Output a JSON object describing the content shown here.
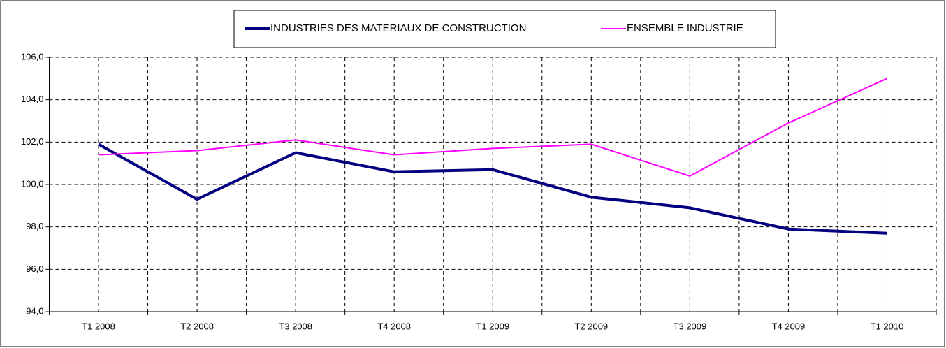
{
  "chart_data": {
    "type": "line",
    "categories": [
      "T1 2008",
      "T2 2008",
      "T3 2008",
      "T4 2008",
      "T1 2009",
      "T2 2009",
      "T3 2009",
      "T4 2009",
      "T1 2010"
    ],
    "series": [
      {
        "name": "INDUSTRIES DES MATERIAUX DE CONSTRUCTION",
        "color": "#000080",
        "values": [
          101.9,
          99.3,
          101.5,
          100.6,
          100.7,
          99.4,
          98.9,
          97.9,
          97.7
        ]
      },
      {
        "name": "ENSEMBLE INDUSTRIE",
        "color": "#ff00ff",
        "values": [
          101.4,
          101.6,
          102.1,
          101.4,
          101.7,
          101.9,
          100.4,
          102.9,
          105.0
        ]
      }
    ],
    "ylim": [
      94,
      106
    ],
    "yticks": [
      {
        "value": 94,
        "label": "94,0"
      },
      {
        "value": 96,
        "label": "96,0"
      },
      {
        "value": 98,
        "label": "98,0"
      },
      {
        "value": 100,
        "label": "100,0"
      },
      {
        "value": 102,
        "label": "102,0"
      },
      {
        "value": 104,
        "label": "104,0"
      },
      {
        "value": 106,
        "label": "106,0"
      }
    ],
    "grid": true,
    "legend": "top"
  }
}
